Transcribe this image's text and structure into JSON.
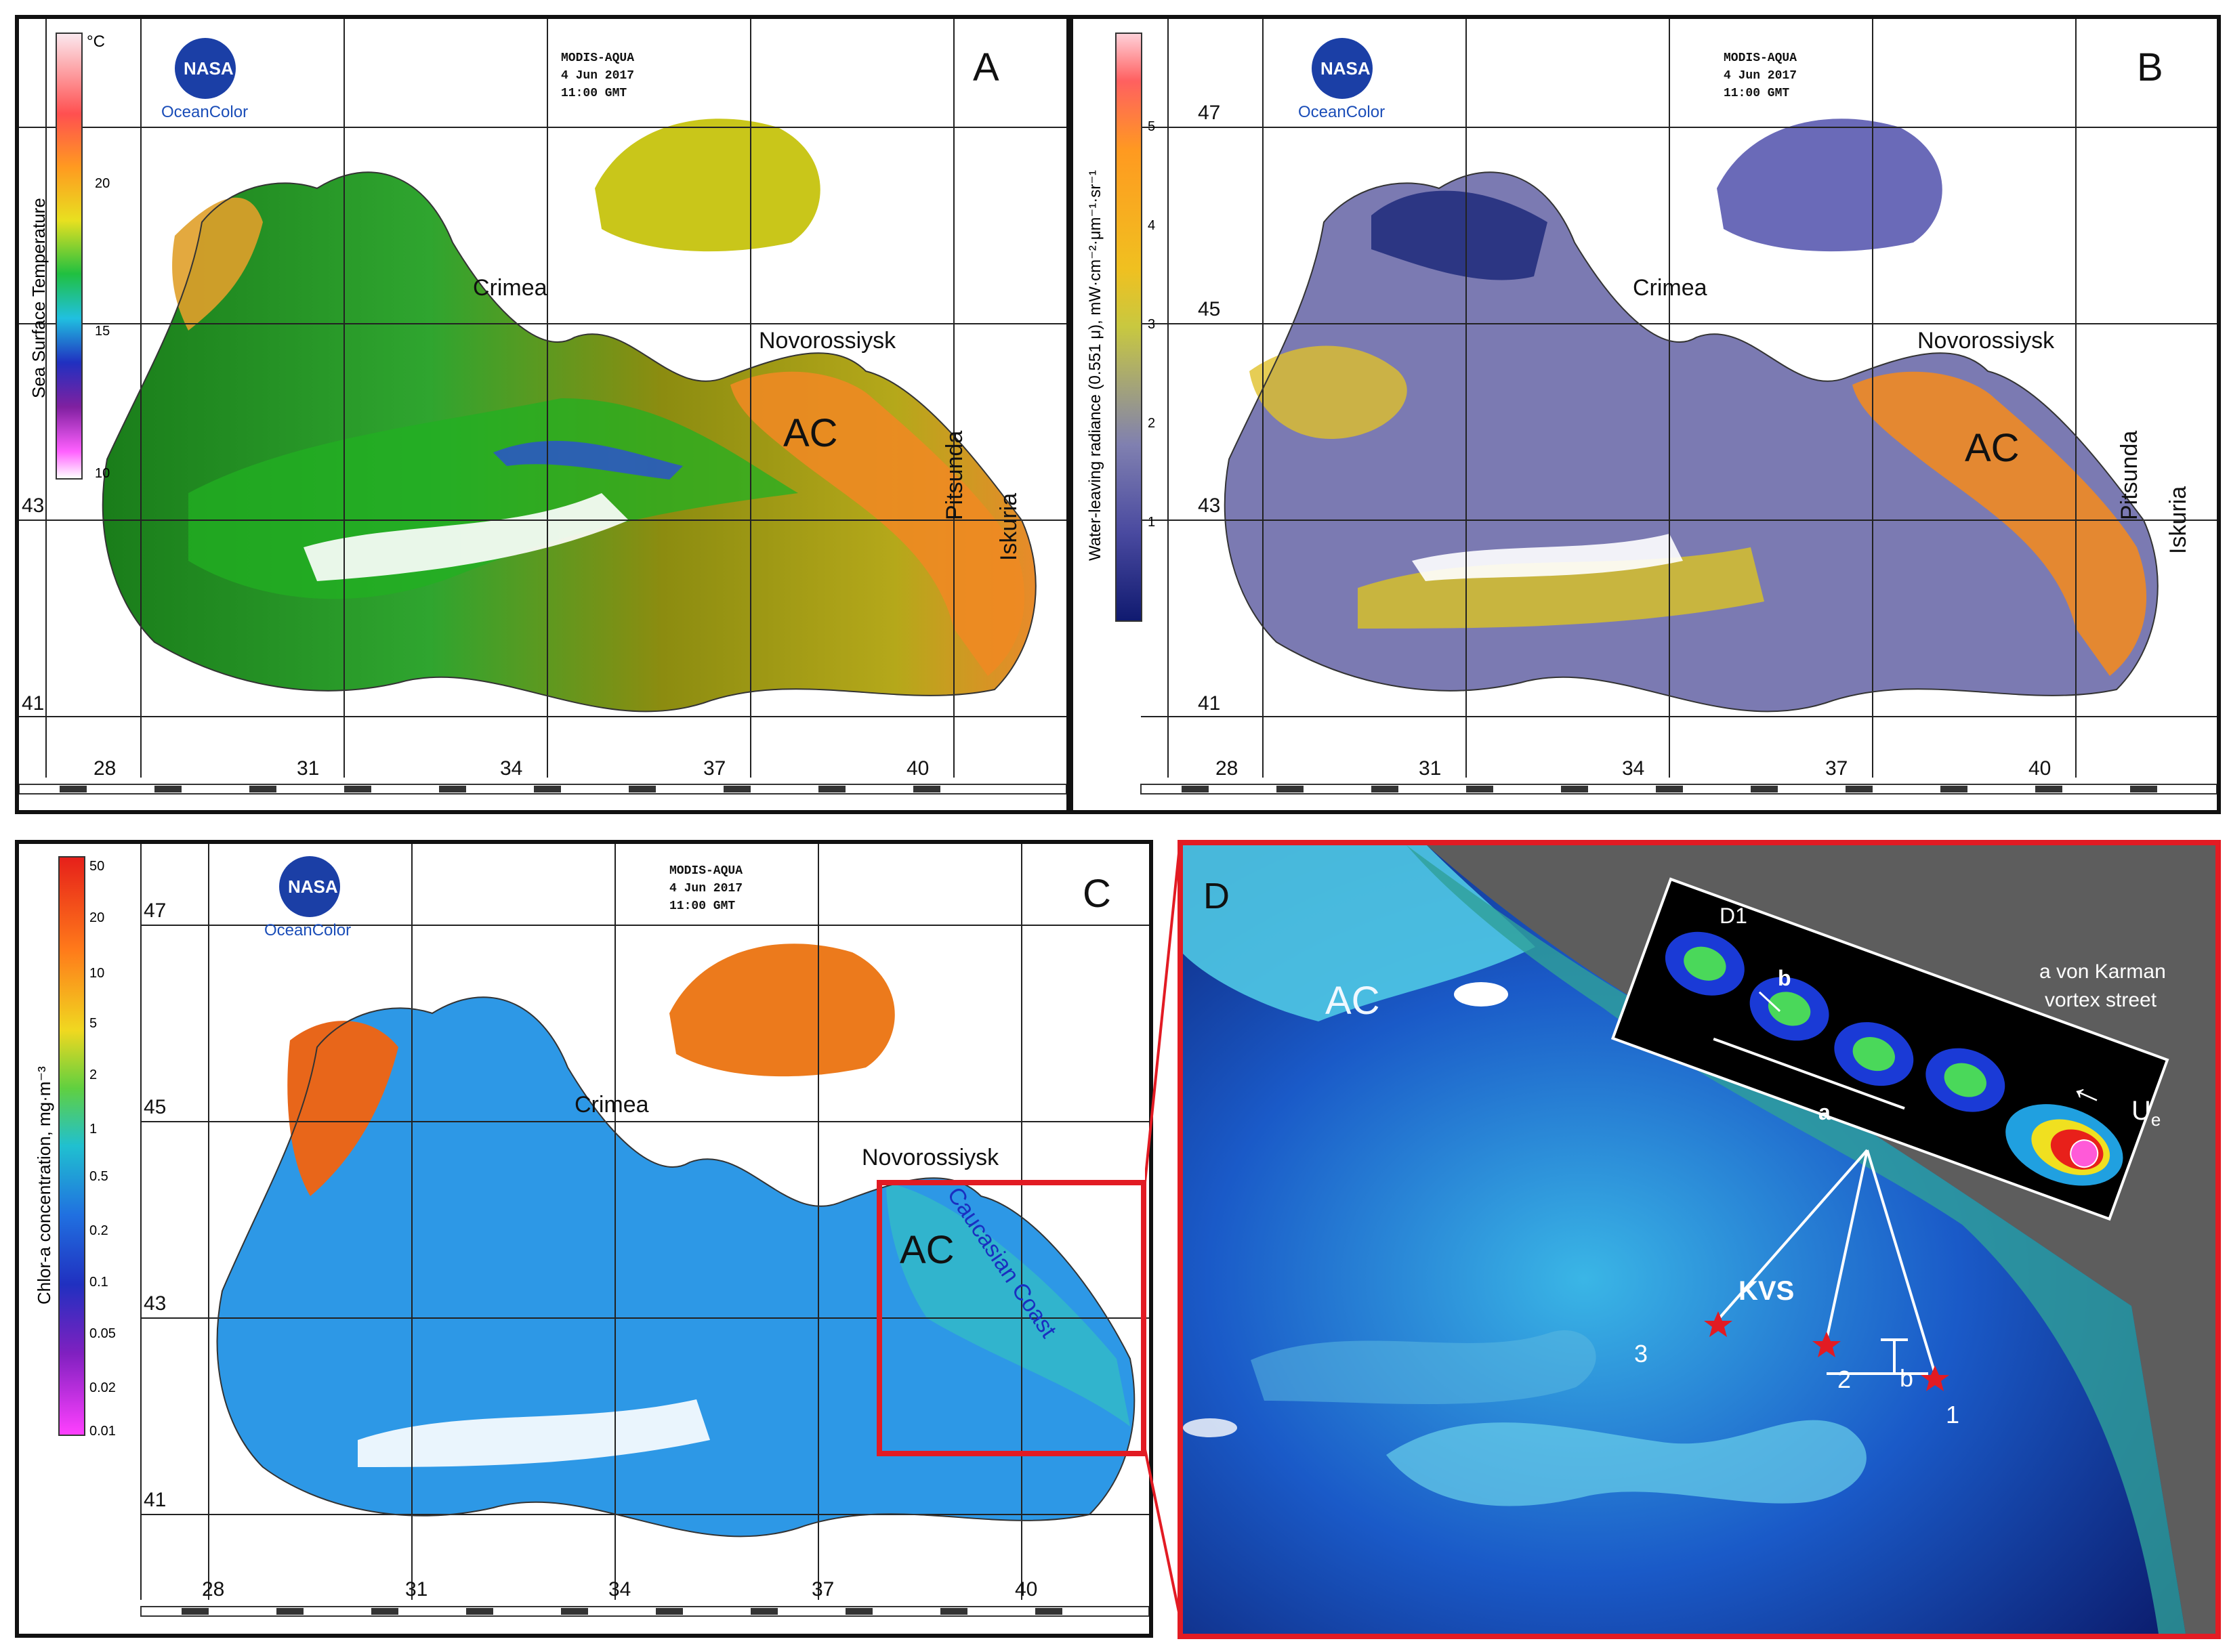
{
  "panel_a": {
    "letter": "A",
    "header": [
      "MODIS-AQUA",
      "4 Jun 2017",
      "11:00 GMT"
    ],
    "logo_text": "NASA",
    "logo_caption": "OceanColor",
    "colorbar": {
      "title": "Sea Surface Temperature",
      "unit": "°C",
      "ticks": [
        "20",
        "15",
        "10"
      ]
    },
    "places": {
      "crimea": "Crimea",
      "novorossiysk": "Novorossiysk",
      "pitsunda": "Pitsunda",
      "iskuria": "Iskuria",
      "ac": "AC"
    },
    "lat_labels": [
      "43",
      "41"
    ],
    "lon_labels": [
      "28",
      "31",
      "34",
      "37",
      "40"
    ]
  },
  "panel_b": {
    "letter": "B",
    "header": [
      "MODIS-AQUA",
      "4 Jun 2017",
      "11:00 GMT"
    ],
    "logo_text": "NASA",
    "logo_caption": "OceanColor",
    "colorbar": {
      "title": "Water-leaving radiance (0.551 μ), mW·cm⁻²·μm⁻¹·sr⁻¹",
      "ticks": [
        "5",
        "4",
        "3",
        "2",
        "1"
      ]
    },
    "places": {
      "crimea": "Crimea",
      "novorossiysk": "Novorossiysk",
      "pitsunda": "Pitsunda",
      "iskuria": "Iskuria",
      "ac": "AC"
    },
    "lat_labels": [
      "47",
      "45",
      "43",
      "41"
    ],
    "lon_labels": [
      "28",
      "31",
      "34",
      "37",
      "40"
    ]
  },
  "panel_c": {
    "letter": "C",
    "header": [
      "MODIS-AQUA",
      "4 Jun 2017",
      "11:00 GMT"
    ],
    "logo_text": "NASA",
    "logo_caption": "OceanColor",
    "colorbar": {
      "title": "Chlor-a concentration, mg·m⁻³",
      "ticks": [
        "50",
        "20",
        "10",
        "5",
        "2",
        "1",
        "0.5",
        "0.2",
        "0.1",
        "0.05",
        "0.02",
        "0.01"
      ]
    },
    "places": {
      "crimea": "Crimea",
      "novorossiysk": "Novorossiysk",
      "caucasian_coast": "Caucasian Coast",
      "ac": "AC"
    },
    "lat_labels": [
      "47",
      "45",
      "43",
      "41"
    ],
    "lon_labels": [
      "28",
      "31",
      "34",
      "37",
      "40"
    ]
  },
  "panel_d": {
    "letter": "D",
    "ac": "AC",
    "kvs": "KVS",
    "inset_label": "D1",
    "inset_a": "a",
    "inset_b": "b",
    "caption_1": "a  von Karman",
    "caption_2": "vortex street",
    "flow": "U",
    "flow_sub": "e",
    "stars": [
      "3",
      "2",
      "1"
    ],
    "b_marker": "b"
  },
  "colors": {
    "frame": "#111111",
    "highlight": "#e21b23",
    "land": "#ffffff",
    "sea_gray": "#5d5d5d"
  }
}
